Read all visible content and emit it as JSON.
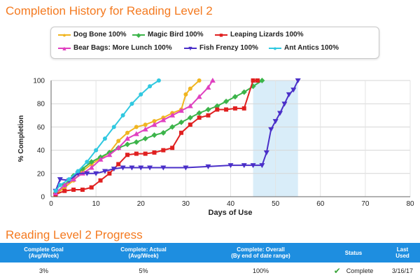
{
  "chart_data": {
    "type": "line",
    "title": "Completion History for Reading Level 2",
    "xlabel": "Days of Use",
    "ylabel": "% Completion",
    "xlim": [
      0,
      80
    ],
    "ylim": [
      0,
      100
    ],
    "xticks": [
      0,
      10,
      20,
      30,
      40,
      50,
      60,
      70,
      80
    ],
    "yticks": [
      0,
      20,
      40,
      60,
      80,
      100
    ],
    "grid": true,
    "legend_position": "top",
    "highlight_band": [
      45,
      55
    ],
    "series": [
      {
        "name": "Dog Bone 100%",
        "color": "#f0b520",
        "marker": "circle",
        "x": [
          1,
          3,
          5,
          7,
          9,
          11,
          13,
          15,
          17,
          19,
          21,
          23,
          25,
          27,
          29,
          30,
          31,
          33
        ],
        "y": [
          2,
          8,
          14,
          22,
          28,
          33,
          38,
          48,
          55,
          60,
          62,
          65,
          68,
          72,
          75,
          88,
          93,
          100
        ]
      },
      {
        "name": "Magic Bird 100%",
        "color": "#3cb44a",
        "marker": "diamond",
        "x": [
          1,
          3,
          5,
          7,
          9,
          11,
          13,
          15,
          17,
          19,
          21,
          23,
          25,
          27,
          29,
          31,
          33,
          35,
          37,
          39,
          41,
          43,
          45,
          47
        ],
        "y": [
          3,
          10,
          18,
          24,
          30,
          34,
          38,
          42,
          45,
          47,
          50,
          53,
          55,
          60,
          64,
          68,
          72,
          75,
          78,
          82,
          86,
          90,
          95,
          100
        ]
      },
      {
        "name": "Leaping Lizards 100%",
        "color": "#e02020",
        "marker": "square",
        "x": [
          1,
          3,
          5,
          7,
          9,
          11,
          13,
          15,
          17,
          19,
          21,
          23,
          25,
          27,
          29,
          31,
          33,
          35,
          37,
          39,
          41,
          43,
          45,
          46
        ],
        "y": [
          2,
          5,
          6,
          6,
          8,
          14,
          20,
          28,
          36,
          37,
          37,
          38,
          40,
          42,
          55,
          62,
          68,
          70,
          75,
          75,
          76,
          76,
          100,
          100
        ]
      },
      {
        "name": "Bear Bags: More Lunch 100%",
        "color": "#e040c0",
        "marker": "triangle-up",
        "x": [
          1,
          3,
          5,
          7,
          9,
          11,
          13,
          15,
          17,
          19,
          21,
          23,
          25,
          27,
          29,
          31,
          33,
          35,
          36
        ],
        "y": [
          3,
          10,
          15,
          20,
          25,
          32,
          36,
          42,
          50,
          54,
          58,
          62,
          66,
          70,
          74,
          78,
          86,
          94,
          100
        ]
      },
      {
        "name": "Fish Frenzy 100%",
        "color": "#4a2fc8",
        "marker": "triangle-down",
        "x": [
          1,
          2,
          4,
          6,
          8,
          10,
          12,
          14,
          16,
          18,
          20,
          22,
          25,
          30,
          35,
          40,
          43,
          45,
          47,
          48,
          49,
          50,
          51,
          52,
          53,
          54,
          55
        ],
        "y": [
          5,
          15,
          14,
          20,
          20,
          20,
          22,
          24,
          25,
          25,
          25,
          25,
          25,
          25,
          26,
          27,
          27,
          27,
          27,
          38,
          58,
          65,
          72,
          80,
          88,
          92,
          100
        ]
      },
      {
        "name": "Ant Antics 100%",
        "color": "#30c8e0",
        "marker": "circle",
        "x": [
          1,
          2,
          4,
          6,
          8,
          10,
          12,
          14,
          16,
          18,
          20,
          22,
          24
        ],
        "y": [
          5,
          10,
          15,
          22,
          30,
          40,
          50,
          60,
          70,
          80,
          88,
          95,
          100
        ]
      }
    ]
  },
  "progress": {
    "title": "Reading Level 2 Progress",
    "headers": [
      [
        "Complete Goal",
        "(Avg/Week)"
      ],
      [
        "Complete: Actual",
        "(Avg/Week)"
      ],
      [
        "Complete: Overall",
        "(By end of date range)"
      ],
      [
        "Status",
        ""
      ],
      [
        "Last",
        "Used"
      ]
    ],
    "row": {
      "goal": "3%",
      "actual": "5%",
      "overall": "100%",
      "status": "Complete",
      "last_used": "3/16/17"
    },
    "status_icon": "checkmark-icon",
    "header_color": "#1e8ee0"
  }
}
